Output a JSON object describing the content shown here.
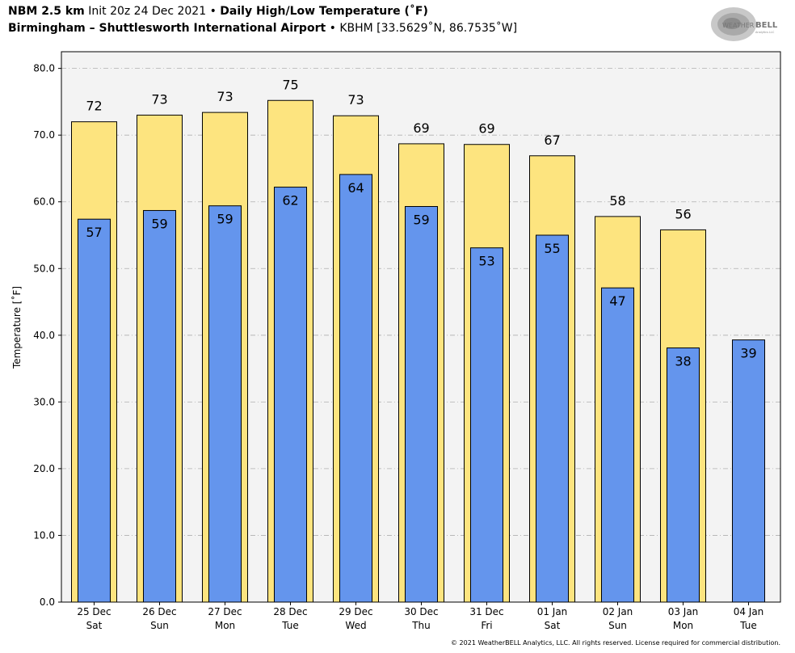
{
  "header": {
    "model": "NBM 2.5 km",
    "init": "Init 20z 24 Dec 2021",
    "sep": "•",
    "title": "Daily High/Low Temperature (˚F)",
    "station": "Birmingham – Shuttlesworth International Airport",
    "station_id": "KBHM [33.5629˚N, 86.7535˚W]"
  },
  "logo": {
    "text_top": "WEATHER",
    "text_bold": "BELL",
    "text_small": "Analytics LLC"
  },
  "footer": {
    "copyright": "© 2021 WeatherBELL Analytics, LLC. All rights reserved. License required for commercial distribution."
  },
  "colors": {
    "high": "#fde47f",
    "low": "#6495ed",
    "plot_bg": "#f3f3f3",
    "grid": "#b0b0b0"
  },
  "chart_data": {
    "type": "bar",
    "ylabel": "Temperature [˚F]",
    "ylim": [
      0,
      80
    ],
    "yticks": [
      "0.0",
      "10.0",
      "20.0",
      "30.0",
      "40.0",
      "50.0",
      "60.0",
      "70.0",
      "80.0"
    ],
    "grid": true,
    "categories": [
      {
        "date": "25 Dec",
        "day": "Sat"
      },
      {
        "date": "26 Dec",
        "day": "Sun"
      },
      {
        "date": "27 Dec",
        "day": "Mon"
      },
      {
        "date": "28 Dec",
        "day": "Tue"
      },
      {
        "date": "29 Dec",
        "day": "Wed"
      },
      {
        "date": "30 Dec",
        "day": "Thu"
      },
      {
        "date": "31 Dec",
        "day": "Fri"
      },
      {
        "date": "01 Jan",
        "day": "Sat"
      },
      {
        "date": "02 Jan",
        "day": "Sun"
      },
      {
        "date": "03 Jan",
        "day": "Mon"
      },
      {
        "date": "04 Jan",
        "day": "Tue"
      }
    ],
    "series": [
      {
        "key": "high",
        "values": [
          72,
          73,
          73.4,
          75.2,
          72.9,
          68.7,
          68.6,
          66.9,
          57.8,
          55.8,
          null
        ],
        "labels": [
          "72",
          "73",
          "73",
          "75",
          "73",
          "69",
          "69",
          "67",
          "58",
          "56",
          ""
        ]
      },
      {
        "key": "low",
        "values": [
          57.4,
          58.7,
          59.4,
          62.2,
          64.1,
          59.3,
          53.1,
          55,
          47.1,
          38.1,
          39.3
        ],
        "labels": [
          "57",
          "59",
          "59",
          "62",
          "64",
          "59",
          "53",
          "55",
          "47",
          "38",
          "39"
        ]
      }
    ]
  }
}
